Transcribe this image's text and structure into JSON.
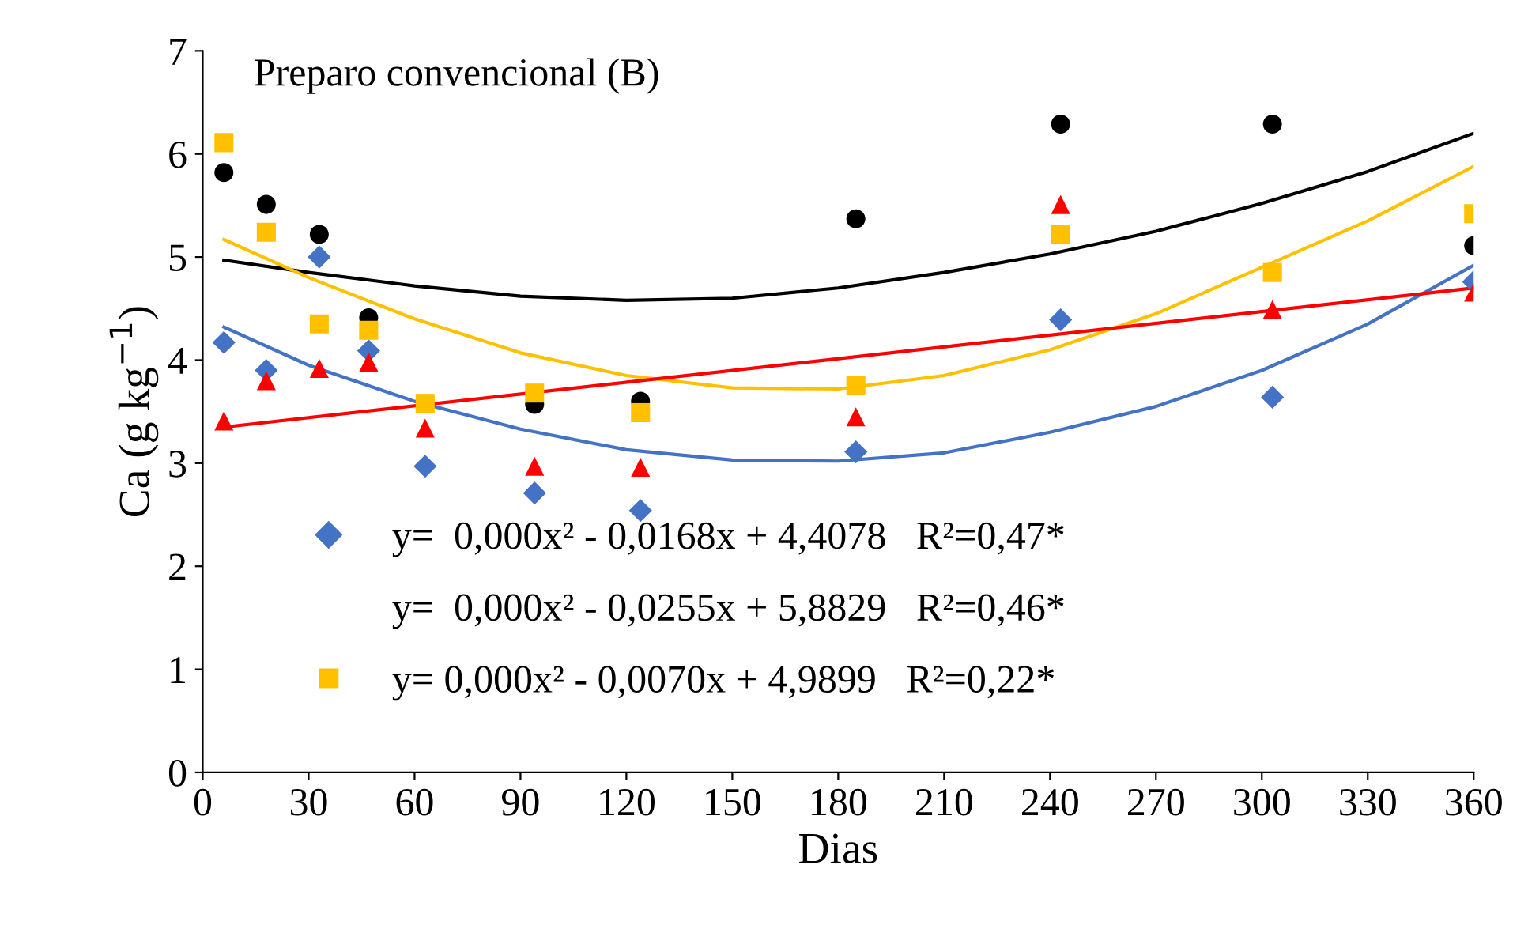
{
  "chart_data": {
    "type": "scatter",
    "title": "Preparo convencional (B)",
    "xlabel": "Dias",
    "ylabel": "Ca (g kg$^{−1}$)",
    "xlim": [
      0,
      360
    ],
    "xticks": [
      0,
      30,
      60,
      90,
      120,
      150,
      180,
      210,
      240,
      270,
      300,
      330,
      360
    ],
    "ylim": [
      0,
      7
    ],
    "yticks": [
      0,
      1,
      2,
      3,
      4,
      5,
      6,
      7
    ],
    "grid": false,
    "legend": "bottom left",
    "annotations": [
      "y=  0,000x² - 0,0255x + 5,8829   R²=0,46*"
    ],
    "x": [
      6,
      18,
      33,
      47,
      63,
      94,
      124,
      185,
      243,
      303,
      360
    ],
    "series": [
      {
        "name": "y=  0,000x² - 0,0168x + 4,4078   R²=0,47*",
        "color": "#4472c4",
        "marker": "diamond",
        "values": [
          4.17,
          3.9,
          5.0,
          4.09,
          2.97,
          2.71,
          2.54,
          3.11,
          4.39,
          3.64,
          4.76
        ]
      },
      {
        "color": "#000000",
        "marker": "circle",
        "values": [
          5.82,
          5.51,
          5.22,
          4.41,
          null,
          3.57,
          3.6,
          5.37,
          6.29,
          6.29,
          5.11
        ]
      },
      {
        "name": "y= 0,000x² - 0,0070x + 4,9899   R²=0,22*",
        "color": "#ffc000",
        "marker": "square",
        "values": [
          6.11,
          5.24,
          4.35,
          4.29,
          3.58,
          3.68,
          3.49,
          3.75,
          5.22,
          4.85,
          5.42
        ]
      },
      {
        "color": "#ff0000",
        "marker": "triangle",
        "values": [
          3.41,
          3.8,
          3.92,
          3.98,
          3.34,
          2.97,
          2.96,
          3.45,
          5.51,
          4.49,
          4.66
        ]
      },
      {
        "type": "line",
        "color": "#4472c4",
        "x": [
          6,
          30,
          60,
          90,
          120,
          150,
          180,
          210,
          240,
          270,
          300,
          330,
          360
        ],
        "values": [
          4.32,
          3.95,
          3.6,
          3.33,
          3.13,
          3.03,
          3.02,
          3.1,
          3.3,
          3.55,
          3.9,
          4.35,
          4.92
        ]
      },
      {
        "type": "line",
        "color": "#000000",
        "x": [
          6,
          30,
          60,
          90,
          120,
          150,
          180,
          210,
          240,
          270,
          300,
          330,
          360
        ],
        "values": [
          4.97,
          4.85,
          4.72,
          4.62,
          4.58,
          4.6,
          4.7,
          4.85,
          5.03,
          5.25,
          5.52,
          5.83,
          6.2
        ]
      },
      {
        "type": "line",
        "color": "#ffc000",
        "x": [
          6,
          30,
          60,
          90,
          120,
          150,
          180,
          210,
          240,
          270,
          300,
          330,
          360
        ],
        "values": [
          5.17,
          4.8,
          4.4,
          4.07,
          3.85,
          3.73,
          3.72,
          3.85,
          4.1,
          4.45,
          4.9,
          5.35,
          5.88
        ]
      },
      {
        "type": "line",
        "color": "#ff0000",
        "x": [
          6,
          360
        ],
        "values": [
          3.35,
          4.7
        ]
      }
    ]
  }
}
